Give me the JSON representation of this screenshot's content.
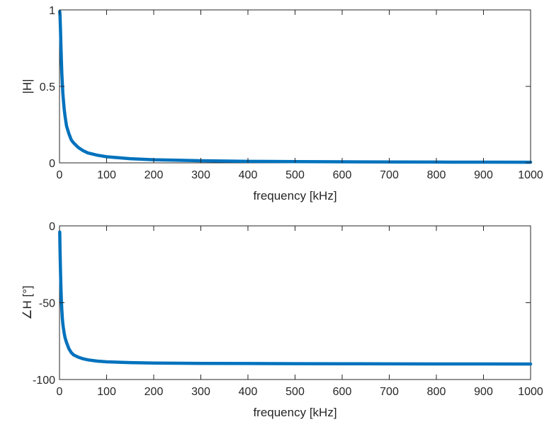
{
  "chart_data": [
    {
      "type": "line",
      "xlabel": "frequency [kHz]",
      "ylabel": "|H|",
      "xlim": [
        0,
        1000
      ],
      "ylim": [
        0,
        1
      ],
      "xticks": [
        0,
        100,
        200,
        300,
        400,
        500,
        600,
        700,
        800,
        900,
        1000
      ],
      "xtick_labels": [
        "0",
        "100",
        "200",
        "300",
        "400",
        "500",
        "600",
        "700",
        "800",
        "900",
        "1000"
      ],
      "yticks": [
        0,
        0.5,
        1
      ],
      "ytick_labels": [
        "0",
        "0.5",
        "1"
      ],
      "grid": false,
      "series": [
        {
          "color": "#0072BD",
          "x": [
            0.5,
            1,
            2,
            3,
            4,
            5,
            6,
            7,
            8,
            10,
            12,
            15,
            20,
            25,
            30,
            40,
            50,
            60,
            80,
            100,
            150,
            200,
            300,
            400,
            500,
            600,
            700,
            800,
            900,
            1000
          ],
          "y": [
            0.99,
            0.97,
            0.88,
            0.77,
            0.67,
            0.58,
            0.52,
            0.46,
            0.42,
            0.35,
            0.3,
            0.24,
            0.19,
            0.15,
            0.13,
            0.1,
            0.08,
            0.065,
            0.05,
            0.04,
            0.027,
            0.02,
            0.014,
            0.01,
            0.008,
            0.007,
            0.006,
            0.005,
            0.0045,
            0.004
          ]
        }
      ]
    },
    {
      "type": "line",
      "xlabel": "frequency [kHz]",
      "ylabel": "∠H [°]",
      "xlim": [
        0,
        1000
      ],
      "ylim": [
        -100,
        0
      ],
      "xticks": [
        0,
        100,
        200,
        300,
        400,
        500,
        600,
        700,
        800,
        900,
        1000
      ],
      "xtick_labels": [
        "0",
        "100",
        "200",
        "300",
        "400",
        "500",
        "600",
        "700",
        "800",
        "900",
        "1000"
      ],
      "yticks": [
        -100,
        -50,
        0
      ],
      "ytick_labels": [
        "-100",
        "-50",
        "0"
      ],
      "grid": false,
      "series": [
        {
          "color": "#0072BD",
          "x": [
            0.5,
            1,
            2,
            3,
            4,
            5,
            6,
            7,
            8,
            10,
            12,
            15,
            20,
            25,
            30,
            40,
            50,
            60,
            80,
            100,
            150,
            200,
            300,
            400,
            500,
            600,
            700,
            800,
            900,
            1000
          ],
          "y": [
            -4,
            -14,
            -28,
            -40,
            -49,
            -55,
            -60,
            -63.5,
            -66,
            -70,
            -73,
            -76,
            -80,
            -82.5,
            -84,
            -85.5,
            -86.5,
            -87.2,
            -88,
            -88.5,
            -89,
            -89.3,
            -89.5,
            -89.6,
            -89.7,
            -89.75,
            -89.8,
            -89.85,
            -89.87,
            -89.9
          ]
        }
      ]
    }
  ]
}
